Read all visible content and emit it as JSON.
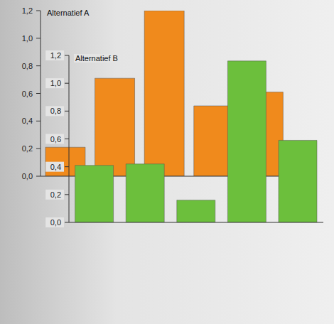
{
  "chart_data": [
    {
      "type": "bar",
      "title": "Alternatief A",
      "categories": [
        null,
        null,
        null,
        null,
        null
      ],
      "values": [
        0.21,
        0.71,
        1.2,
        0.51,
        0.61
      ],
      "color": "#f08a1c",
      "ylim": [
        0,
        1.2
      ],
      "yticks": [
        {
          "value": 0,
          "label": "0,0"
        },
        {
          "value": 0.2,
          "label": "0,2"
        },
        {
          "value": 0.4,
          "label": "0,4"
        },
        {
          "value": 0.6,
          "label": "0,6"
        },
        {
          "value": 0.8,
          "label": "0,8"
        },
        {
          "value": 1,
          "label": "1,0"
        },
        {
          "value": 1.2,
          "label": "1,2"
        }
      ],
      "tick_labels": "y"
    },
    {
      "type": "bar",
      "title": "Alternatief B",
      "categories": [
        null,
        null,
        null,
        null,
        null
      ],
      "values": [
        0.41,
        0.42,
        0.16,
        1.16,
        0.59
      ],
      "color": "#6cbf3c",
      "ylim": [
        0,
        1.2
      ],
      "yticks": [
        {
          "value": 0,
          "label": "0,0"
        },
        {
          "value": 0.2,
          "label": "0,2"
        },
        {
          "value": 0.4,
          "label": "0,4"
        },
        {
          "value": 0.6,
          "label": "0,6"
        },
        {
          "value": 0.8,
          "label": "0,8"
        },
        {
          "value": 1,
          "label": "1,0"
        },
        {
          "value": 1.2,
          "label": "1,2"
        }
      ],
      "tick_labels": "y"
    }
  ]
}
